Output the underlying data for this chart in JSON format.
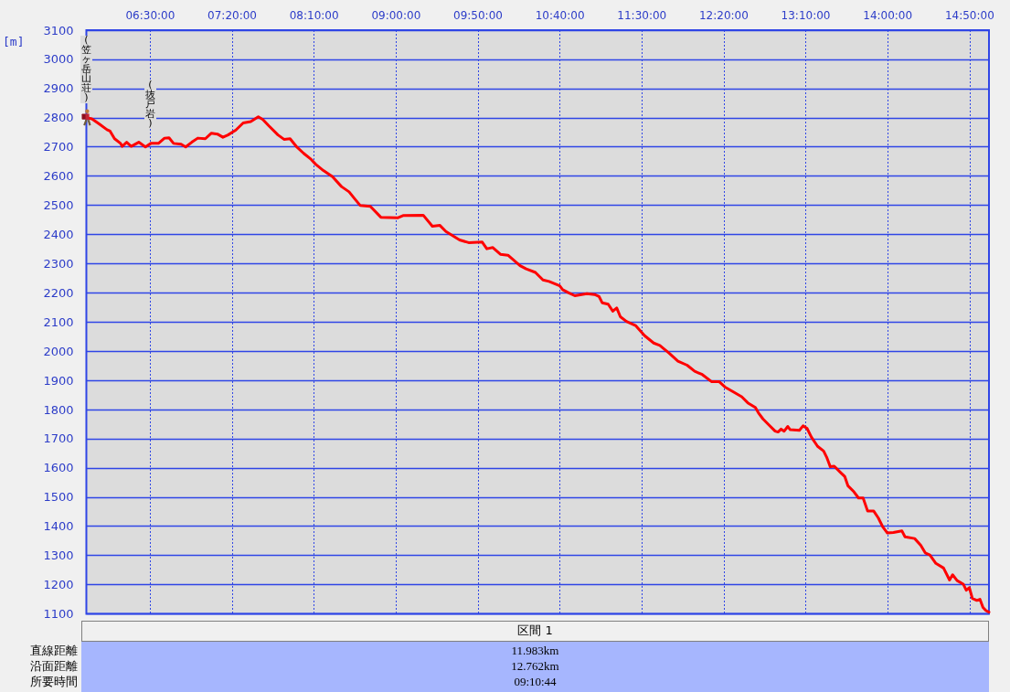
{
  "chart_data": {
    "type": "line",
    "ylabel": "[m]",
    "x": [
      5.85,
      5.906,
      5.983,
      6.06,
      6.091,
      6.137,
      6.198,
      6.214,
      6.26,
      6.306,
      6.383,
      6.451,
      6.506,
      6.583,
      6.645,
      6.691,
      6.737,
      6.814,
      6.86,
      6.922,
      6.983,
      7.06,
      7.122,
      7.183,
      7.239,
      7.291,
      7.368,
      7.445,
      7.522,
      7.599,
      7.645,
      7.707,
      7.799,
      7.86,
      7.922,
      7.984,
      8.06,
      8.137,
      8.184,
      8.261,
      8.353,
      8.445,
      8.522,
      8.584,
      8.636,
      8.738,
      8.845,
      9.015,
      9.076,
      9.276,
      9.369,
      9.446,
      9.507,
      9.646,
      9.738,
      9.876,
      9.923,
      9.984,
      10.061,
      10.138,
      10.261,
      10.323,
      10.417,
      10.494,
      10.556,
      10.664,
      10.694,
      10.756,
      10.818,
      10.941,
      11.019,
      11.065,
      11.096,
      11.157,
      11.204,
      11.244,
      11.281,
      11.343,
      11.435,
      11.528,
      11.62,
      11.682,
      11.775,
      11.867,
      11.96,
      12.037,
      12.114,
      12.207,
      12.284,
      12.346,
      12.423,
      12.515,
      12.577,
      12.654,
      12.685,
      12.731,
      12.793,
      12.855,
      12.885,
      12.916,
      12.947,
      12.984,
      13.009,
      13.102,
      13.139,
      13.179,
      13.225,
      13.287,
      13.348,
      13.379,
      13.416,
      13.456,
      13.518,
      13.564,
      13.595,
      13.657,
      13.703,
      13.75,
      13.796,
      13.858,
      13.904,
      13.95,
      13.997,
      14.058,
      14.145,
      14.176,
      14.274,
      14.336,
      14.382,
      14.429,
      14.49,
      14.568,
      14.629,
      14.66,
      14.706,
      14.768,
      14.799,
      14.83,
      14.861,
      14.907,
      14.938,
      14.969,
      15.0,
      15.03
    ],
    "series": [
      {
        "color": "#ff0000",
        "values": [
          2800,
          2796,
          2778,
          2759,
          2754,
          2728,
          2712,
          2702,
          2716,
          2702,
          2716,
          2700,
          2712,
          2712,
          2730,
          2731,
          2712,
          2709,
          2700,
          2716,
          2730,
          2728,
          2747,
          2744,
          2733,
          2741,
          2757,
          2782,
          2787,
          2803,
          2794,
          2772,
          2741,
          2726,
          2728,
          2702,
          2678,
          2657,
          2640,
          2619,
          2598,
          2564,
          2546,
          2520,
          2499,
          2496,
          2459,
          2457,
          2465,
          2466,
          2428,
          2431,
          2410,
          2381,
          2372,
          2374,
          2351,
          2355,
          2332,
          2329,
          2293,
          2282,
          2270,
          2244,
          2239,
          2224,
          2211,
          2200,
          2190,
          2197,
          2194,
          2187,
          2166,
          2161,
          2137,
          2148,
          2118,
          2102,
          2088,
          2053,
          2028,
          2020,
          1994,
          1966,
          1952,
          1931,
          1920,
          1896,
          1896,
          1877,
          1862,
          1844,
          1823,
          1807,
          1789,
          1768,
          1747,
          1726,
          1723,
          1733,
          1726,
          1742,
          1731,
          1729,
          1744,
          1736,
          1705,
          1674,
          1658,
          1637,
          1604,
          1606,
          1585,
          1570,
          1539,
          1518,
          1497,
          1497,
          1452,
          1452,
          1429,
          1398,
          1377,
          1379,
          1384,
          1364,
          1358,
          1335,
          1309,
          1302,
          1273,
          1257,
          1216,
          1234,
          1214,
          1202,
          1181,
          1190,
          1153,
          1146,
          1150,
          1122,
          1111,
          1106
        ]
      }
    ],
    "xlim": [
      5.85,
      15.03
    ],
    "xticks": [
      {
        "value": 6.5,
        "label": "06:30:00"
      },
      {
        "value": 7.33333,
        "label": "07:20:00"
      },
      {
        "value": 8.16667,
        "label": "08:10:00"
      },
      {
        "value": 9,
        "label": "09:00:00"
      },
      {
        "value": 9.83333,
        "label": "09:50:00"
      },
      {
        "value": 10.66667,
        "label": "10:40:00"
      },
      {
        "value": 11.5,
        "label": "11:30:00"
      },
      {
        "value": 12.33333,
        "label": "12:20:00"
      },
      {
        "value": 13.16667,
        "label": "13:10:00"
      },
      {
        "value": 14,
        "label": "14:00:00"
      },
      {
        "value": 14.83333,
        "label": "14:50:00"
      }
    ],
    "ylim": [
      1100,
      3100
    ],
    "yticks": [
      1100,
      1200,
      1300,
      1400,
      1500,
      1600,
      1700,
      1800,
      1900,
      2000,
      2100,
      2200,
      2300,
      2400,
      2500,
      2600,
      2700,
      2800,
      2900,
      3000,
      3100
    ],
    "grid": true,
    "marker": "none",
    "line_style": "solid",
    "annotations": [
      {
        "text": "(笠ヶ岳山荘)",
        "x": 5.85,
        "y": 2800
      },
      {
        "text": "(抜戸岩)",
        "x": 6.5,
        "y": 2712
      },
      "区間 1",
      "直線距離",
      "11.983km",
      "沿面距離",
      "12.762km",
      "所要時間",
      "09:10:44"
    ]
  }
}
